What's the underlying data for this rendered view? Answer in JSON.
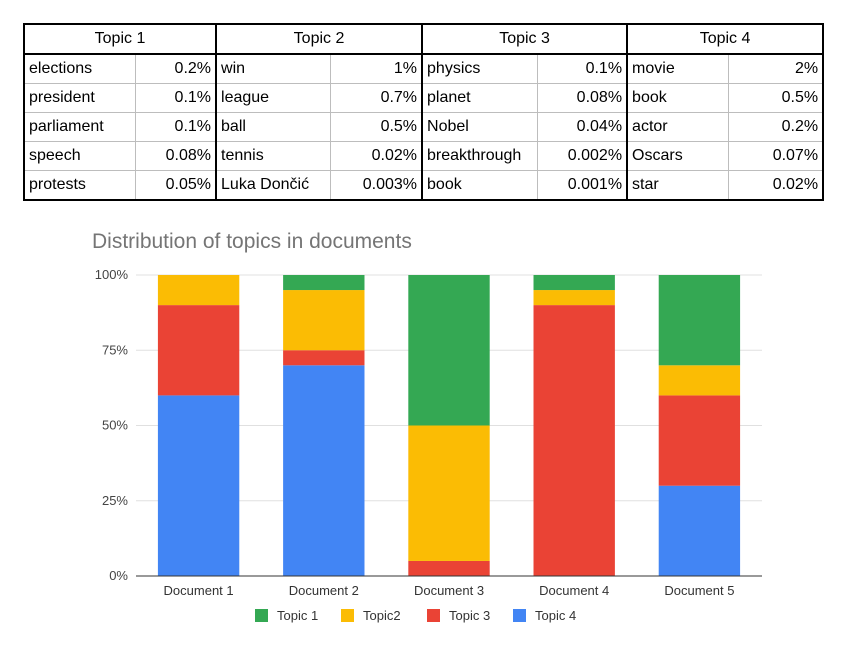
{
  "table": {
    "topics": [
      {
        "name": "Topic 1",
        "words": [
          {
            "word": "elections",
            "pct": "0.2%"
          },
          {
            "word": "president",
            "pct": "0.1%"
          },
          {
            "word": "parliament",
            "pct": "0.1%"
          },
          {
            "word": "speech",
            "pct": "0.08%"
          },
          {
            "word": "protests",
            "pct": "0.05%"
          }
        ]
      },
      {
        "name": "Topic 2",
        "words": [
          {
            "word": "win",
            "pct": "1%"
          },
          {
            "word": "league",
            "pct": "0.7%"
          },
          {
            "word": "ball",
            "pct": "0.5%"
          },
          {
            "word": "tennis",
            "pct": "0.02%"
          },
          {
            "word": "Luka Dončić",
            "pct": "0.003%"
          }
        ]
      },
      {
        "name": "Topic 3",
        "words": [
          {
            "word": "physics",
            "pct": "0.1%"
          },
          {
            "word": "planet",
            "pct": "0.08%"
          },
          {
            "word": "Nobel",
            "pct": "0.04%"
          },
          {
            "word": "breakthrough",
            "pct": "0.002%"
          },
          {
            "word": "book",
            "pct": "0.001%"
          }
        ]
      },
      {
        "name": "Topic 4",
        "words": [
          {
            "word": "movie",
            "pct": "2%"
          },
          {
            "word": "book",
            "pct": "0.5%"
          },
          {
            "word": "actor",
            "pct": "0.2%"
          },
          {
            "word": "Oscars",
            "pct": "0.07%"
          },
          {
            "word": "star",
            "pct": "0.02%"
          }
        ]
      }
    ]
  },
  "chart_data": {
    "type": "bar",
    "stacked": true,
    "normalized_percent": true,
    "title": "Distribution of topics in documents",
    "xlabel": "",
    "ylabel": "",
    "categories": [
      "Document 1",
      "Document 2",
      "Document 3",
      "Document 4",
      "Document 5"
    ],
    "ylim": [
      0,
      100
    ],
    "yticks": [
      "0%",
      "25%",
      "50%",
      "75%",
      "100%"
    ],
    "series": [
      {
        "name": "Topic 4",
        "color": "#4285f4",
        "values": [
          60,
          70,
          0,
          0,
          30
        ]
      },
      {
        "name": "Topic 3",
        "color": "#ea4335",
        "values": [
          30,
          5,
          5,
          90,
          30
        ]
      },
      {
        "name": "Topic2",
        "color": "#fbbc04",
        "values": [
          10,
          20,
          45,
          5,
          10
        ]
      },
      {
        "name": "Topic 1",
        "color": "#34a853",
        "values": [
          0,
          5,
          50,
          5,
          30
        ]
      }
    ],
    "legend": {
      "position": "bottom",
      "order": [
        "Topic 1",
        "Topic2",
        "Topic 3",
        "Topic 4"
      ]
    },
    "grid": true
  }
}
